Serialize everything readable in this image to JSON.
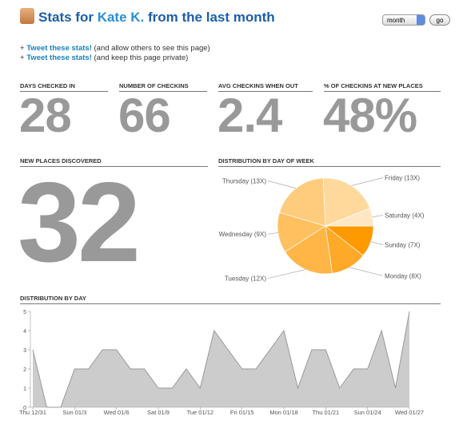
{
  "header": {
    "title_prefix": "Stats for",
    "name": "Kate K.",
    "title_suffix": "from the last month",
    "period": "month",
    "button": "go"
  },
  "links": [
    {
      "prefix": "+",
      "link": "Tweet these stats!",
      "text": "(and allow others to see this page)"
    },
    {
      "prefix": "+",
      "link": "Tweet these stats!",
      "text": "(and keep this page private)"
    }
  ],
  "stats": [
    {
      "label": "DAYS CHECKED IN",
      "value": 28
    },
    {
      "label": "NUMBER OF CHECKINS",
      "value": 66
    },
    {
      "label": "AVG CHECKINS WHEN OUT",
      "value": 2.4
    },
    {
      "label": "% OF CHECKINS AT NEW PLACES",
      "value": "48%"
    }
  ],
  "new_places": {
    "label": "NEW PLACES DISCOVERED",
    "value": 32
  },
  "chart_data": [
    {
      "type": "pie",
      "title": "DISTRIBUTION BY DAY OF WEEK",
      "values": [
        7,
        8,
        12,
        9,
        13,
        13,
        4
      ],
      "value_labels": [
        "Sunday (7X)",
        "Monday (8X)",
        "Tuesday (12X)",
        "Wednesday (9X)",
        "Thursday (13X)",
        "Friday (13X)",
        "Saturday (4X)"
      ],
      "colors": [
        "#ff9900",
        "#ffa928",
        "#ffb646",
        "#ffc060",
        "#ffcb7c",
        "#ffd89c",
        "#ffe7c4"
      ]
    },
    {
      "type": "area",
      "title": "DISTRIBUTION BY DAY",
      "categories": [
        "Thu 12/31",
        null,
        null,
        "Sun 01/3",
        null,
        null,
        "Wed 01/6",
        null,
        null,
        "Sat 01/9",
        null,
        null,
        "Tue 01/12",
        null,
        null,
        "Fri 01/15",
        null,
        null,
        "Mon 01/18",
        null,
        null,
        "Thu 01/21",
        null,
        null,
        "Sun 01/24",
        null,
        null,
        "Wed 01/27"
      ],
      "values": [
        3,
        0,
        0,
        2,
        2,
        3,
        3,
        2,
        2,
        1,
        1,
        2,
        1,
        4,
        3,
        2,
        2,
        3,
        4,
        1,
        3,
        3,
        1,
        2,
        2,
        4,
        1,
        5
      ],
      "color": "#cccccc",
      "line_color": "#999999",
      "ylim": [
        0,
        5
      ],
      "yticks": [
        0,
        1,
        2,
        3,
        4,
        5
      ]
    }
  ]
}
